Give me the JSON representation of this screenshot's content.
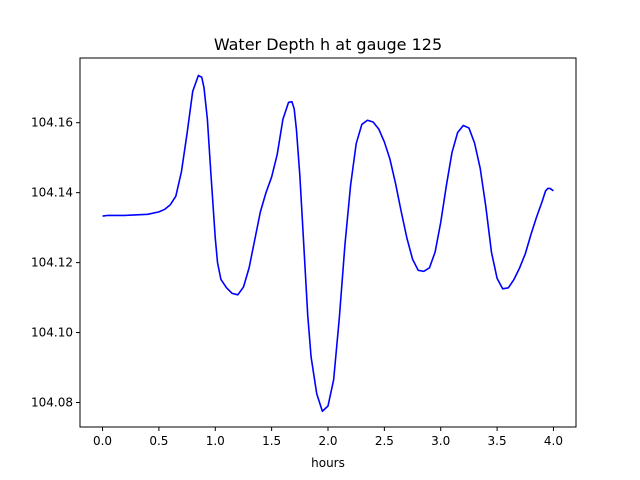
{
  "chart_data": {
    "type": "line",
    "title": "Water Depth h at gauge 125",
    "xlabel": "hours",
    "ylabel": "",
    "xlim": [
      -0.2,
      4.2
    ],
    "ylim": [
      104.073,
      104.1785
    ],
    "grid": false,
    "legend": "none",
    "x_ticks": [
      {
        "value": 0.0,
        "label": "0.0"
      },
      {
        "value": 0.5,
        "label": "0.5"
      },
      {
        "value": 1.0,
        "label": "1.0"
      },
      {
        "value": 1.5,
        "label": "1.5"
      },
      {
        "value": 2.0,
        "label": "2.0"
      },
      {
        "value": 2.5,
        "label": "2.5"
      },
      {
        "value": 3.0,
        "label": "3.0"
      },
      {
        "value": 3.5,
        "label": "3.5"
      },
      {
        "value": 4.0,
        "label": "4.0"
      }
    ],
    "y_ticks": [
      {
        "value": 104.08,
        "label": "104.08"
      },
      {
        "value": 104.1,
        "label": "104.10"
      },
      {
        "value": 104.12,
        "label": "104.12"
      },
      {
        "value": 104.14,
        "label": "104.14"
      },
      {
        "value": 104.16,
        "label": "104.16"
      }
    ],
    "series": [
      {
        "color": "#0000ff",
        "x": [
          0.0,
          0.05,
          0.2,
          0.4,
          0.5,
          0.55,
          0.6,
          0.65,
          0.7,
          0.75,
          0.8,
          0.85,
          0.88,
          0.9,
          0.93,
          0.96,
          1.0,
          1.02,
          1.05,
          1.1,
          1.15,
          1.2,
          1.25,
          1.3,
          1.35,
          1.4,
          1.45,
          1.5,
          1.55,
          1.6,
          1.65,
          1.68,
          1.7,
          1.72,
          1.75,
          1.78,
          1.82,
          1.85,
          1.9,
          1.95,
          2.0,
          2.05,
          2.1,
          2.15,
          2.2,
          2.25,
          2.3,
          2.35,
          2.4,
          2.45,
          2.5,
          2.55,
          2.6,
          2.65,
          2.7,
          2.75,
          2.8,
          2.85,
          2.9,
          2.95,
          3.0,
          3.05,
          3.1,
          3.15,
          3.2,
          3.25,
          3.3,
          3.35,
          3.4,
          3.45,
          3.5,
          3.55,
          3.6,
          3.65,
          3.7,
          3.75,
          3.8,
          3.85,
          3.9,
          3.93,
          3.95,
          3.97,
          4.0
        ],
        "y": [
          104.1333,
          104.1335,
          104.1335,
          104.1338,
          104.1345,
          104.1352,
          104.1365,
          104.139,
          104.146,
          104.157,
          104.169,
          104.1735,
          104.173,
          104.17,
          104.161,
          104.146,
          104.127,
          104.12,
          104.1152,
          104.1128,
          104.1112,
          104.1108,
          104.113,
          104.1185,
          104.1265,
          104.1345,
          104.14,
          104.1445,
          104.151,
          104.161,
          104.1658,
          104.166,
          104.164,
          104.158,
          104.145,
          104.128,
          104.105,
          104.093,
          104.0825,
          104.0775,
          104.079,
          104.0865,
          104.104,
          104.125,
          104.142,
          104.154,
          104.1595,
          104.1607,
          104.1602,
          104.1582,
          104.1545,
          104.1495,
          104.1425,
          104.1345,
          104.127,
          104.121,
          104.1178,
          104.1175,
          104.1185,
          104.123,
          104.1315,
          104.142,
          104.1515,
          104.1572,
          104.1592,
          104.1585,
          104.1542,
          104.147,
          104.136,
          104.123,
          104.1155,
          104.1125,
          104.1128,
          104.1152,
          104.1185,
          104.1225,
          104.128,
          104.133,
          104.1375,
          104.1405,
          104.1412,
          104.1412,
          104.1405
        ]
      }
    ]
  }
}
